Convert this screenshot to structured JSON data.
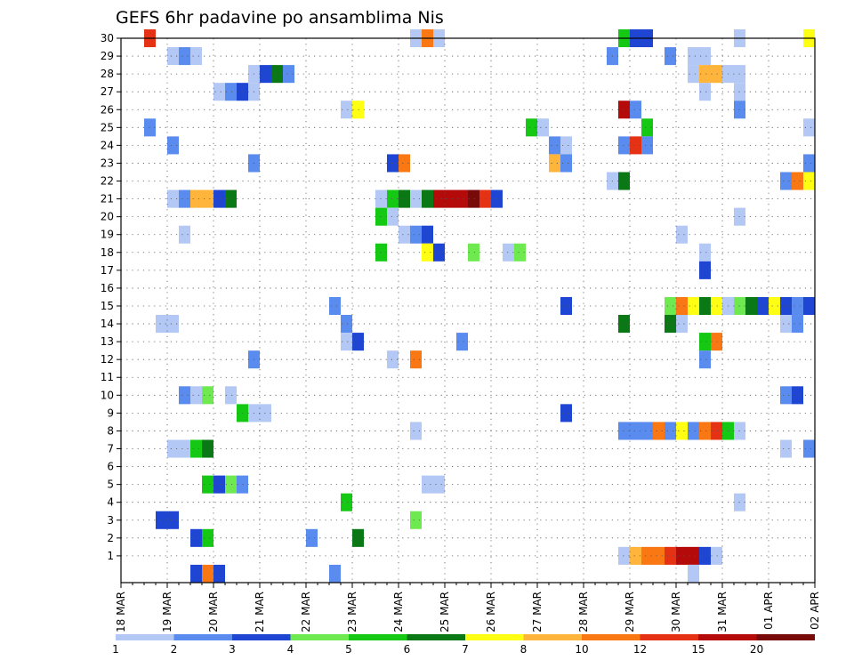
{
  "chart_data": {
    "type": "heatmap",
    "title": "GEFS 6hr padavine po ansamblima Nis",
    "xlabel": "",
    "ylabel": "",
    "x_ticks": [
      "18 MAR",
      "19 MAR",
      "20 MAR",
      "21 MAR",
      "22 MAR",
      "23 MAR",
      "24 MAR",
      "25 MAR",
      "26 MAR",
      "27 MAR",
      "28 MAR",
      "29 MAR",
      "30 MAR",
      "31 MAR",
      "01 APR",
      "02 APR"
    ],
    "y_ticks": [
      1,
      2,
      3,
      4,
      5,
      6,
      7,
      8,
      9,
      10,
      11,
      12,
      13,
      14,
      15,
      16,
      17,
      18,
      19,
      20,
      21,
      22,
      23,
      24,
      25,
      26,
      27,
      28,
      29,
      30
    ],
    "x_range": [
      "18 MAR 00Z",
      "02 APR 00Z"
    ],
    "y_range": [
      0,
      30
    ],
    "step_hours": 6,
    "grid": true,
    "colorbar": {
      "labels": [
        "1",
        "2",
        "3",
        "4",
        "5",
        "6",
        "7",
        "8",
        "10",
        "12",
        "15",
        "20"
      ],
      "colors": [
        "#b4c8f5",
        "#5a8cf0",
        "#1e46d2",
        "#6eea50",
        "#14c814",
        "#0a7814",
        "#ffff14",
        "#ffb43c",
        "#fa7814",
        "#e63214",
        "#b40a0a",
        "#780a0a"
      ]
    },
    "cells_encoding": "[column_index_6h, member, color_index]",
    "cells": [
      [
        28,
        30,
        9
      ],
      [
        51,
        30,
        0
      ],
      [
        52,
        30,
        8
      ],
      [
        53,
        30,
        0
      ],
      [
        69,
        30,
        4
      ],
      [
        70,
        30,
        2
      ],
      [
        71,
        30,
        2
      ],
      [
        79,
        30,
        0
      ],
      [
        85,
        30,
        6
      ],
      [
        30,
        29,
        0
      ],
      [
        31,
        29,
        1
      ],
      [
        32,
        29,
        0
      ],
      [
        68,
        29,
        1
      ],
      [
        73,
        29,
        1
      ],
      [
        75,
        29,
        0
      ],
      [
        76,
        29,
        0
      ],
      [
        37,
        28,
        0
      ],
      [
        38,
        28,
        2
      ],
      [
        39,
        28,
        5
      ],
      [
        40,
        28,
        1
      ],
      [
        75,
        28,
        0
      ],
      [
        76,
        28,
        7
      ],
      [
        77,
        28,
        7
      ],
      [
        78,
        28,
        0
      ],
      [
        79,
        28,
        0
      ],
      [
        34,
        27,
        0
      ],
      [
        35,
        27,
        1
      ],
      [
        36,
        27,
        2
      ],
      [
        37,
        27,
        0
      ],
      [
        76,
        27,
        0
      ],
      [
        79,
        27,
        0
      ],
      [
        45,
        26,
        0
      ],
      [
        46,
        26,
        6
      ],
      [
        69,
        26,
        10
      ],
      [
        70,
        26,
        1
      ],
      [
        79,
        26,
        1
      ],
      [
        28,
        25,
        1
      ],
      [
        61,
        25,
        4
      ],
      [
        62,
        25,
        0
      ],
      [
        71,
        25,
        4
      ],
      [
        85,
        25,
        0
      ],
      [
        30,
        24,
        1
      ],
      [
        63,
        24,
        1
      ],
      [
        64,
        24,
        0
      ],
      [
        69,
        24,
        1
      ],
      [
        70,
        24,
        9
      ],
      [
        71,
        24,
        1
      ],
      [
        37,
        23,
        1
      ],
      [
        49,
        23,
        2
      ],
      [
        50,
        23,
        8
      ],
      [
        63,
        23,
        7
      ],
      [
        64,
        23,
        1
      ],
      [
        85,
        23,
        1
      ],
      [
        68,
        22,
        0
      ],
      [
        69,
        22,
        5
      ],
      [
        83,
        22,
        1
      ],
      [
        84,
        22,
        8
      ],
      [
        85,
        22,
        6
      ],
      [
        30,
        21,
        0
      ],
      [
        31,
        21,
        1
      ],
      [
        32,
        21,
        7
      ],
      [
        33,
        21,
        7
      ],
      [
        34,
        21,
        2
      ],
      [
        35,
        21,
        5
      ],
      [
        48,
        21,
        0
      ],
      [
        49,
        21,
        4
      ],
      [
        50,
        21,
        5
      ],
      [
        51,
        21,
        0
      ],
      [
        52,
        21,
        5
      ],
      [
        53,
        21,
        10
      ],
      [
        54,
        21,
        10
      ],
      [
        55,
        21,
        10
      ],
      [
        56,
        21,
        11
      ],
      [
        57,
        21,
        9
      ],
      [
        58,
        21,
        2
      ],
      [
        48,
        20,
        4
      ],
      [
        49,
        20,
        0
      ],
      [
        79,
        20,
        0
      ],
      [
        31,
        19,
        0
      ],
      [
        50,
        19,
        0
      ],
      [
        51,
        19,
        1
      ],
      [
        52,
        19,
        2
      ],
      [
        74,
        19,
        0
      ],
      [
        48,
        18,
        4
      ],
      [
        52,
        18,
        6
      ],
      [
        53,
        18,
        2
      ],
      [
        56,
        18,
        3
      ],
      [
        59,
        18,
        0
      ],
      [
        60,
        18,
        3
      ],
      [
        76,
        18,
        0
      ],
      [
        76,
        17,
        2
      ],
      [
        44,
        15,
        1
      ],
      [
        64,
        15,
        2
      ],
      [
        73,
        15,
        3
      ],
      [
        74,
        15,
        8
      ],
      [
        75,
        15,
        6
      ],
      [
        76,
        15,
        5
      ],
      [
        77,
        15,
        6
      ],
      [
        78,
        15,
        0
      ],
      [
        79,
        15,
        3
      ],
      [
        80,
        15,
        5
      ],
      [
        81,
        15,
        2
      ],
      [
        82,
        15,
        6
      ],
      [
        83,
        15,
        2
      ],
      [
        84,
        15,
        1
      ],
      [
        85,
        15,
        2
      ],
      [
        29,
        14,
        0
      ],
      [
        30,
        14,
        0
      ],
      [
        45,
        14,
        1
      ],
      [
        69,
        14,
        5
      ],
      [
        73,
        14,
        5
      ],
      [
        74,
        14,
        0
      ],
      [
        83,
        14,
        0
      ],
      [
        84,
        14,
        1
      ],
      [
        45,
        13,
        0
      ],
      [
        46,
        13,
        2
      ],
      [
        55,
        13,
        1
      ],
      [
        76,
        13,
        4
      ],
      [
        77,
        13,
        8
      ],
      [
        37,
        12,
        1
      ],
      [
        49,
        12,
        0
      ],
      [
        51,
        12,
        8
      ],
      [
        76,
        12,
        1
      ],
      [
        31,
        10,
        1
      ],
      [
        32,
        10,
        0
      ],
      [
        33,
        10,
        3
      ],
      [
        35,
        10,
        0
      ],
      [
        83,
        10,
        1
      ],
      [
        84,
        10,
        2
      ],
      [
        36,
        9,
        4
      ],
      [
        37,
        9,
        0
      ],
      [
        38,
        9,
        0
      ],
      [
        64,
        9,
        2
      ],
      [
        51,
        8,
        0
      ],
      [
        69,
        8,
        1
      ],
      [
        70,
        8,
        1
      ],
      [
        71,
        8,
        1
      ],
      [
        72,
        8,
        8
      ],
      [
        73,
        8,
        1
      ],
      [
        74,
        8,
        6
      ],
      [
        75,
        8,
        1
      ],
      [
        76,
        8,
        8
      ],
      [
        77,
        8,
        9
      ],
      [
        78,
        8,
        4
      ],
      [
        79,
        8,
        0
      ],
      [
        30,
        7,
        0
      ],
      [
        31,
        7,
        0
      ],
      [
        32,
        7,
        4
      ],
      [
        33,
        7,
        5
      ],
      [
        83,
        7,
        0
      ],
      [
        85,
        7,
        1
      ],
      [
        33,
        5,
        4
      ],
      [
        34,
        5,
        2
      ],
      [
        35,
        5,
        3
      ],
      [
        36,
        5,
        1
      ],
      [
        52,
        5,
        0
      ],
      [
        53,
        5,
        0
      ],
      [
        45,
        4,
        4
      ],
      [
        79,
        4,
        0
      ],
      [
        29,
        3,
        2
      ],
      [
        30,
        3,
        2
      ],
      [
        51,
        3,
        3
      ],
      [
        32,
        2,
        2
      ],
      [
        33,
        2,
        4
      ],
      [
        42,
        2,
        1
      ],
      [
        46,
        2,
        5
      ],
      [
        69,
        1,
        0
      ],
      [
        70,
        1,
        7
      ],
      [
        71,
        1,
        8
      ],
      [
        72,
        1,
        8
      ],
      [
        73,
        1,
        9
      ],
      [
        74,
        1,
        10
      ],
      [
        75,
        1,
        10
      ],
      [
        76,
        1,
        2
      ],
      [
        77,
        1,
        0
      ],
      [
        32,
        0,
        2
      ],
      [
        33,
        0,
        8
      ],
      [
        34,
        0,
        2
      ],
      [
        44,
        0,
        1
      ],
      [
        75,
        0,
        0
      ]
    ]
  }
}
